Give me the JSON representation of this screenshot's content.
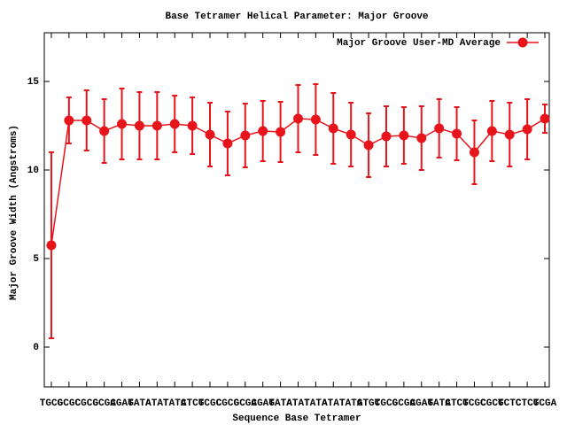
{
  "chart_data": {
    "type": "line",
    "title": "Base Tetramer Helical Parameter: Major Groove",
    "x_label": "Sequence Base Tetramer",
    "y_label": "Major Groove Width (Angstroms)",
    "categories": [
      "TGCG",
      "GCGC",
      "CGCG",
      "GCGA",
      "CGAT",
      "GATA",
      "ATAT",
      "TATC",
      "ATCG",
      "TCGC",
      "CGCG",
      "GCGA",
      "CGAT",
      "GATA",
      "ATAT",
      "TATA",
      "ATAT",
      "TATG",
      "ATGC",
      "TGCG",
      "GCGA",
      "CGAT",
      "GATC",
      "ATCG",
      "TCGC",
      "CGCT",
      "GCTC",
      "CTCG",
      "TCGA"
    ],
    "series": [
      {
        "name": "Major Groove User-MD Average",
        "color": "#e8141c",
        "values": [
          5.75,
          12.8,
          12.8,
          12.2,
          12.6,
          12.5,
          12.5,
          12.6,
          12.5,
          12.0,
          11.5,
          11.95,
          12.2,
          12.15,
          12.9,
          12.85,
          12.35,
          12.0,
          11.4,
          11.9,
          11.95,
          11.8,
          12.35,
          12.05,
          11.0,
          12.2,
          12.0,
          12.3,
          12.9
        ],
        "errors": [
          5.25,
          1.3,
          1.7,
          1.8,
          2.0,
          1.9,
          1.9,
          1.6,
          1.6,
          1.8,
          1.8,
          1.8,
          1.7,
          1.7,
          1.9,
          2.0,
          2.0,
          1.8,
          1.8,
          1.7,
          1.6,
          1.8,
          1.65,
          1.5,
          1.8,
          1.7,
          1.8,
          1.7,
          0.8
        ]
      }
    ],
    "xlim": [
      -0.4,
      28.25
    ],
    "ylim": [
      -2.25,
      17.75
    ],
    "yticks": [
      0,
      5,
      10,
      15
    ],
    "legend": "top-right"
  }
}
